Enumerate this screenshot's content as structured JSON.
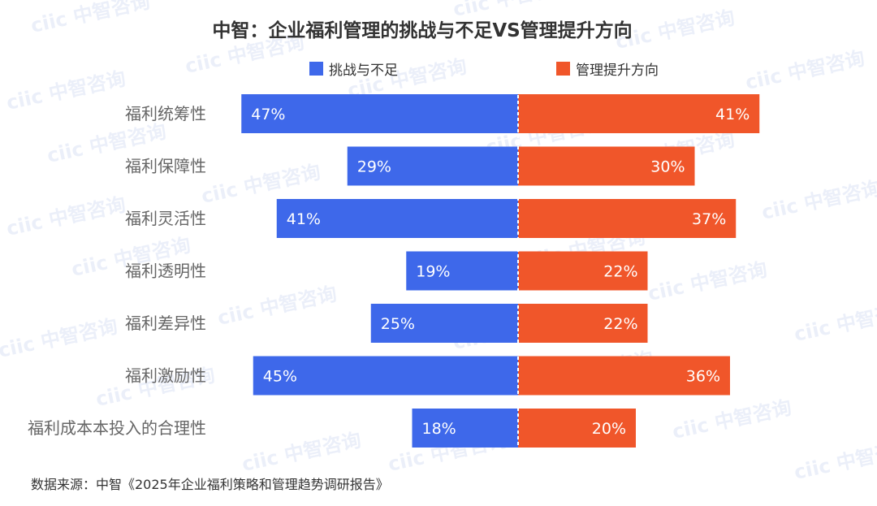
{
  "title": "中智：企业福利管理的挑战与不足VS管理提升方向",
  "source": "数据来源：中智《2025年企业福利策略和管理趋势调研报告》",
  "watermark": "ciic 中智咨询",
  "colors": {
    "left": "#3e68ea",
    "right": "#f0562a"
  },
  "chart_data": {
    "type": "bar",
    "orientation": "diverging-horizontal",
    "categories": [
      "福利统筹性",
      "福利保障性",
      "福利灵活性",
      "福利透明性",
      "福利差异性",
      "福利激励性",
      "福利成本本投入的合理性"
    ],
    "series": [
      {
        "name": "挑战与不足",
        "values": [
          47,
          29,
          41,
          19,
          25,
          45,
          18
        ],
        "labels": [
          "47%",
          "29%",
          "41%",
          "19%",
          "25%",
          "45%",
          "18%"
        ]
      },
      {
        "name": "管理提升方向",
        "values": [
          41,
          30,
          37,
          22,
          22,
          36,
          20
        ],
        "labels": [
          "41%",
          "30%",
          "37%",
          "22%",
          "22%",
          "36%",
          "20%"
        ]
      }
    ],
    "legend_position": "top",
    "grid": false
  }
}
